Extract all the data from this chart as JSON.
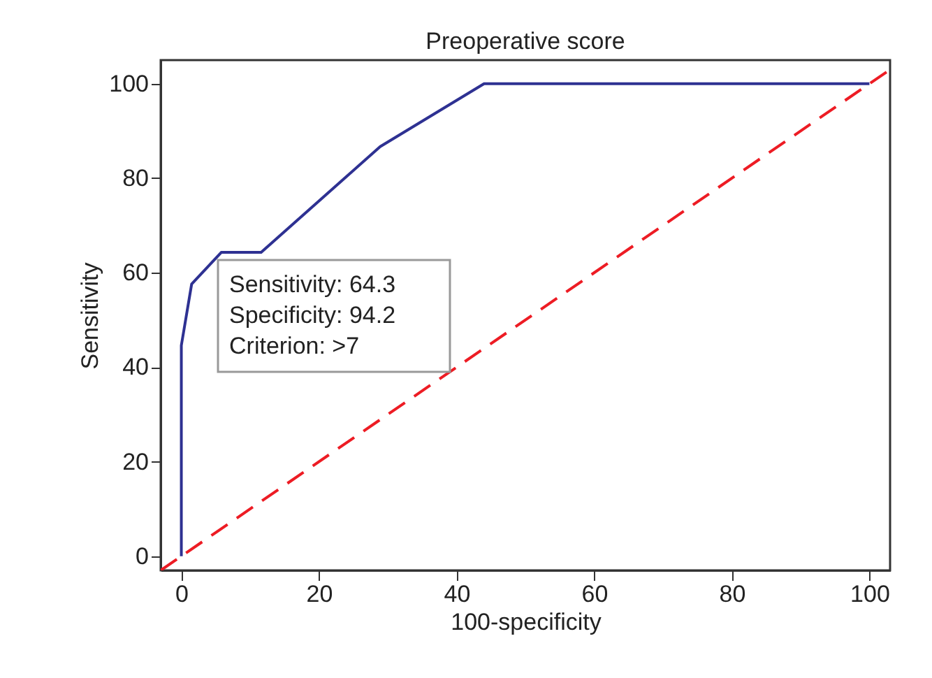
{
  "chart_data": {
    "type": "line",
    "title": "Preoperative score",
    "xlabel": "100-specificity",
    "ylabel": "Sensitivity",
    "xlim": [
      -3,
      103
    ],
    "ylim": [
      -3,
      105
    ],
    "xticks": [
      0,
      20,
      40,
      60,
      80,
      100
    ],
    "yticks": [
      0,
      20,
      40,
      60,
      80,
      100
    ],
    "series": [
      {
        "x": [
          0,
          0,
          1.5,
          5.8,
          11.6,
          28.9,
          44,
          100
        ],
        "values": [
          0,
          44.6,
          57.6,
          64.3,
          64.3,
          86.7,
          100,
          100
        ],
        "color": "#2e3192",
        "line_style": "solid"
      },
      {
        "x": [
          -3,
          103
        ],
        "values": [
          -3,
          103
        ],
        "color": "#ed1c24",
        "line_style": "dashed"
      }
    ],
    "annotations": [
      "Sensitivity: 64.3",
      "Specificity: 94.2",
      "Criterion: >7"
    ]
  }
}
